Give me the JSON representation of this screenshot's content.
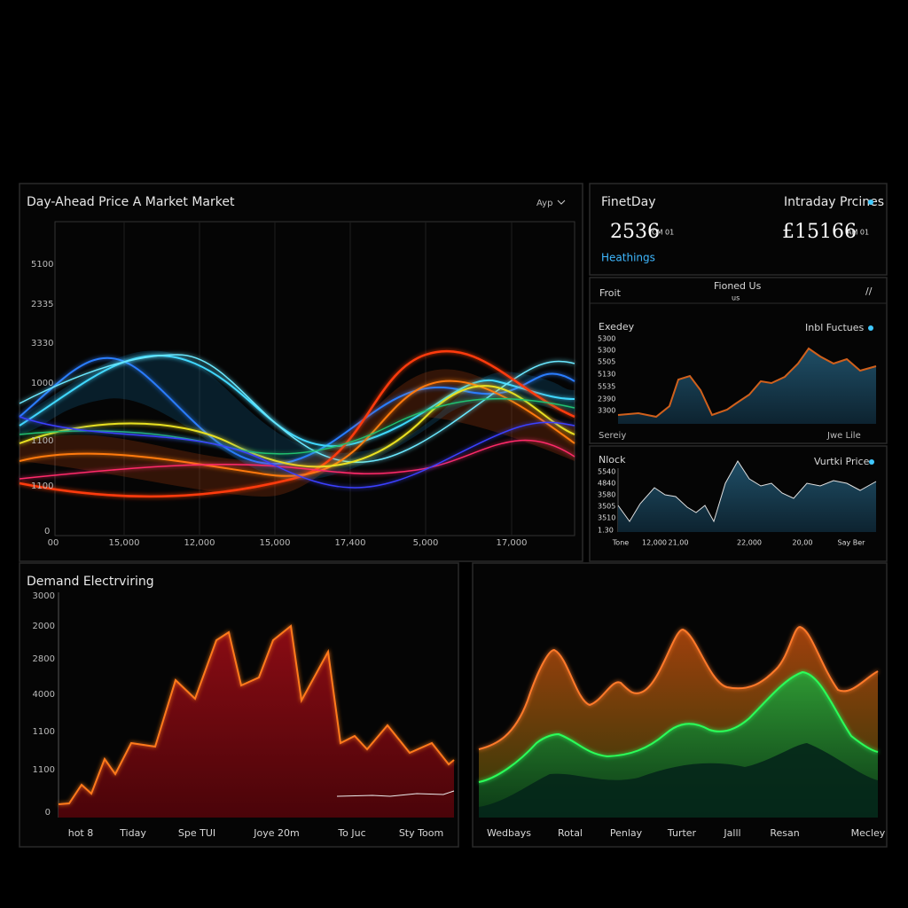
{
  "price_panel": {
    "title": "Day-Ahead Price A Market Market",
    "dropdown": "Ayp",
    "y_labels": [
      "5100",
      "2335",
      "3330",
      "1000",
      "1100",
      "1100",
      "0"
    ],
    "x_labels": [
      "00",
      "15,000",
      "12,000",
      "15,000",
      "17,400",
      "5,000",
      "17,000"
    ]
  },
  "summary_panel": {
    "left_title": "FinetDay",
    "right_title": "Intraday Prcines",
    "left_value": "2536",
    "left_unit": "CM 01",
    "right_value": "£15166",
    "right_unit": "AM 01",
    "link": "Heathings"
  },
  "intraday_panel": {
    "header_left": "Froit",
    "header_center": "Fioned Us",
    "header_sub": "us",
    "header_right": "//",
    "title": "Exedey",
    "legend": "Inbl Fuctues",
    "y_labels": [
      "5300",
      "5300",
      "5505",
      "5130",
      "5535",
      "2390",
      "3300"
    ],
    "footer_left": "Sereiy",
    "footer_right": "Jwe Lile"
  },
  "block_panel": {
    "title": "Nlock",
    "legend": "Vurtki Price",
    "y_labels": [
      "5540",
      "4840",
      "3580",
      "3505",
      "3510",
      "1.30"
    ],
    "x_labels": [
      "Tone",
      "12,000",
      "21,00",
      "22,000",
      "20,00",
      "Say Ber"
    ]
  },
  "demand_panel": {
    "title": "Demand Electrviring",
    "y_labels": [
      "3000",
      "2000",
      "2800",
      "4000",
      "1100",
      "1100",
      "0"
    ],
    "x_labels": [
      "hot 8",
      "Tiday",
      "Spe TUI",
      "Joye 20m",
      "To Juc",
      "Sty Toom"
    ]
  },
  "mix_panel": {
    "x_labels": [
      "Wedbays",
      "Rotal",
      "Penlay",
      "Turter",
      "Jalll",
      "Resan",
      "Mecley"
    ]
  }
}
